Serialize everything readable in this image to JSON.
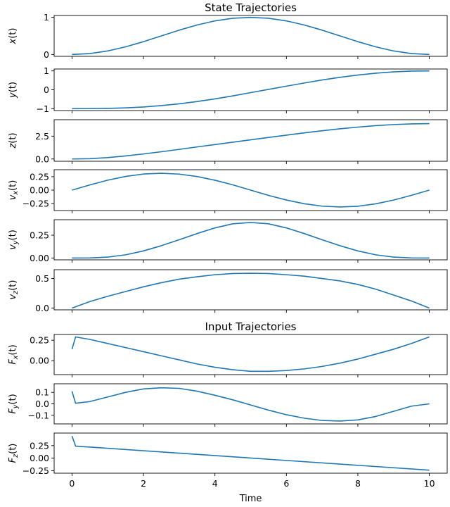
{
  "chart_data": [
    {
      "type": "line",
      "title": "State Trajectories",
      "ylabel": {
        "base": "x",
        "sub": "",
        "arg": "(t)"
      },
      "xlim": [
        -0.5,
        10.5
      ],
      "ylim": [
        -0.05,
        1.05
      ],
      "yticks": [
        0,
        1
      ],
      "ytick_labels": [
        "0",
        "1"
      ],
      "series": [
        {
          "color": "#1f77b4",
          "x": [
            0,
            0.5,
            1,
            1.5,
            2,
            2.5,
            3,
            3.5,
            4,
            4.5,
            5,
            5.5,
            6,
            6.5,
            7,
            7.5,
            8,
            8.5,
            9,
            9.5,
            10
          ],
          "y": [
            0,
            0.025,
            0.095,
            0.206,
            0.345,
            0.5,
            0.655,
            0.794,
            0.905,
            0.975,
            1,
            0.975,
            0.905,
            0.794,
            0.655,
            0.5,
            0.345,
            0.206,
            0.095,
            0.025,
            0
          ]
        }
      ]
    },
    {
      "type": "line",
      "title": "",
      "ylabel": {
        "base": "y",
        "sub": "",
        "arg": "(t)"
      },
      "xlim": [
        -0.5,
        10.5
      ],
      "ylim": [
        -1.1,
        1.1
      ],
      "yticks": [
        -1,
        0,
        1
      ],
      "ytick_labels": [
        "−1",
        "0",
        "1"
      ],
      "series": [
        {
          "color": "#1f77b4",
          "x": [
            0,
            0.5,
            1,
            1.5,
            2,
            2.5,
            3,
            3.5,
            4,
            4.5,
            5,
            5.5,
            6,
            6.5,
            7,
            7.5,
            8,
            8.5,
            9,
            9.5,
            10
          ],
          "y": [
            -1,
            -0.998,
            -0.985,
            -0.958,
            -0.91,
            -0.838,
            -0.742,
            -0.623,
            -0.481,
            -0.323,
            -0.15,
            0.02,
            0.19,
            0.36,
            0.52,
            0.66,
            0.78,
            0.88,
            0.95,
            0.99,
            1
          ]
        }
      ]
    },
    {
      "type": "line",
      "title": "",
      "ylabel": {
        "base": "z",
        "sub": "",
        "arg": "(t)"
      },
      "xlim": [
        -0.5,
        10.5
      ],
      "ylim": [
        -0.25,
        4.3
      ],
      "yticks": [
        0,
        2.5
      ],
      "ytick_labels": [
        "0.0",
        "2.5"
      ],
      "series": [
        {
          "color": "#1f77b4",
          "x": [
            0,
            0.5,
            1,
            1.5,
            2,
            2.5,
            3,
            3.5,
            4,
            4.5,
            5,
            5.5,
            6,
            6.5,
            7,
            7.5,
            8,
            8.5,
            9,
            9.5,
            10
          ],
          "y": [
            0,
            0.038,
            0.15,
            0.33,
            0.55,
            0.79,
            1.05,
            1.32,
            1.58,
            1.84,
            2.1,
            2.36,
            2.61,
            2.86,
            3.09,
            3.3,
            3.49,
            3.65,
            3.77,
            3.84,
            3.87
          ]
        }
      ]
    },
    {
      "type": "line",
      "title": "",
      "ylabel": {
        "base": "v",
        "sub": "x",
        "arg": "(t)"
      },
      "xlim": [
        -0.5,
        10.5
      ],
      "ylim": [
        -0.38,
        0.38
      ],
      "yticks": [
        -0.25,
        0,
        0.25
      ],
      "ytick_labels": [
        "−0.25",
        "0.00",
        "0.25"
      ],
      "series": [
        {
          "color": "#1f77b4",
          "x": [
            0,
            0.5,
            1,
            1.5,
            2,
            2.5,
            3,
            3.5,
            4,
            4.5,
            5,
            5.5,
            6,
            6.5,
            7,
            7.5,
            8,
            8.5,
            9,
            9.5,
            10
          ],
          "y": [
            0,
            0.097,
            0.185,
            0.255,
            0.3,
            0.314,
            0.298,
            0.253,
            0.184,
            0.098,
            0,
            -0.098,
            -0.184,
            -0.253,
            -0.298,
            -0.314,
            -0.3,
            -0.255,
            -0.185,
            -0.097,
            0
          ]
        }
      ]
    },
    {
      "type": "line",
      "title": "",
      "ylabel": {
        "base": "v",
        "sub": "y",
        "arg": "(t)"
      },
      "xlim": [
        -0.5,
        10.5
      ],
      "ylim": [
        -0.02,
        0.42
      ],
      "yticks": [
        0,
        0.25
      ],
      "ytick_labels": [
        "0.00",
        "0.25"
      ],
      "series": [
        {
          "color": "#1f77b4",
          "x": [
            0,
            0.5,
            1,
            1.5,
            2,
            2.5,
            3,
            3.5,
            4,
            4.5,
            5,
            5.5,
            6,
            6.5,
            7,
            7.5,
            8,
            8.5,
            9,
            9.5,
            10
          ],
          "y": [
            0,
            0.001,
            0.01,
            0.035,
            0.078,
            0.135,
            0.2,
            0.268,
            0.33,
            0.375,
            0.39,
            0.375,
            0.33,
            0.268,
            0.2,
            0.135,
            0.078,
            0.035,
            0.01,
            0.001,
            0
          ]
        }
      ]
    },
    {
      "type": "line",
      "title": "",
      "ylabel": {
        "base": "v",
        "sub": "z",
        "arg": "(t)"
      },
      "xlim": [
        -0.5,
        10.5
      ],
      "ylim": [
        -0.03,
        0.65
      ],
      "yticks": [
        0,
        0.5
      ],
      "ytick_labels": [
        "0.0",
        "0.5"
      ],
      "series": [
        {
          "color": "#1f77b4",
          "x": [
            0,
            0.5,
            1,
            1.5,
            2,
            2.5,
            3,
            3.5,
            4,
            4.5,
            5,
            5.5,
            6,
            6.5,
            7,
            7.5,
            8,
            8.5,
            9,
            9.5,
            10
          ],
          "y": [
            0,
            0.11,
            0.2,
            0.28,
            0.36,
            0.43,
            0.49,
            0.53,
            0.565,
            0.585,
            0.59,
            0.585,
            0.565,
            0.54,
            0.5,
            0.46,
            0.4,
            0.32,
            0.22,
            0.12,
            0
          ]
        }
      ]
    },
    {
      "type": "line",
      "title": "Input Trajectories",
      "ylabel": {
        "base": "F",
        "sub": "x",
        "arg": "(t)"
      },
      "xlim": [
        -0.5,
        10.5
      ],
      "ylim": [
        -0.17,
        0.32
      ],
      "yticks": [
        0,
        0.25
      ],
      "ytick_labels": [
        "0.00",
        "0.25"
      ],
      "series": [
        {
          "color": "#1f77b4",
          "x": [
            0,
            0.1,
            0.5,
            1,
            1.5,
            2,
            2.5,
            3,
            3.5,
            4,
            4.5,
            5,
            5.5,
            6,
            6.5,
            7,
            7.5,
            8,
            8.5,
            9,
            9.5,
            10
          ],
          "y": [
            0.14,
            0.29,
            0.26,
            0.21,
            0.16,
            0.11,
            0.06,
            0.01,
            -0.04,
            -0.08,
            -0.11,
            -0.13,
            -0.13,
            -0.12,
            -0.1,
            -0.07,
            -0.03,
            0.02,
            0.08,
            0.14,
            0.21,
            0.29
          ]
        }
      ]
    },
    {
      "type": "line",
      "title": "",
      "ylabel": {
        "base": "F",
        "sub": "y",
        "arg": "(t)"
      },
      "xlim": [
        -0.5,
        10.5
      ],
      "ylim": [
        -0.175,
        0.175
      ],
      "yticks": [
        -0.1,
        0,
        0.1
      ],
      "ytick_labels": [
        "−0.1",
        "0.0",
        "0.1"
      ],
      "series": [
        {
          "color": "#1f77b4",
          "x": [
            0,
            0.1,
            0.5,
            1,
            1.5,
            2,
            2.5,
            3,
            3.5,
            4,
            4.5,
            5,
            5.5,
            6,
            6.5,
            7,
            7.5,
            8,
            8.5,
            9,
            9.5,
            10
          ],
          "y": [
            0.11,
            0.005,
            0.02,
            0.06,
            0.1,
            0.13,
            0.14,
            0.135,
            0.11,
            0.075,
            0.035,
            -0.01,
            -0.055,
            -0.095,
            -0.125,
            -0.145,
            -0.15,
            -0.14,
            -0.11,
            -0.065,
            -0.02,
            0
          ]
        }
      ]
    },
    {
      "type": "line",
      "title": "",
      "ylabel": {
        "base": "F",
        "sub": "z",
        "arg": "(t)"
      },
      "xlabel": "Time",
      "xlim": [
        -0.5,
        10.5
      ],
      "ylim": [
        -0.3,
        0.5
      ],
      "yticks": [
        -0.25,
        0,
        0.25
      ],
      "ytick_labels": [
        "−0.25",
        "0.00",
        "0.25"
      ],
      "xticks": [
        0,
        2,
        4,
        6,
        8,
        10
      ],
      "xtick_labels": [
        "0",
        "2",
        "4",
        "6",
        "8",
        "10"
      ],
      "series": [
        {
          "color": "#1f77b4",
          "x": [
            0,
            0.1,
            10
          ],
          "y": [
            0.44,
            0.24,
            -0.24
          ]
        }
      ]
    }
  ]
}
